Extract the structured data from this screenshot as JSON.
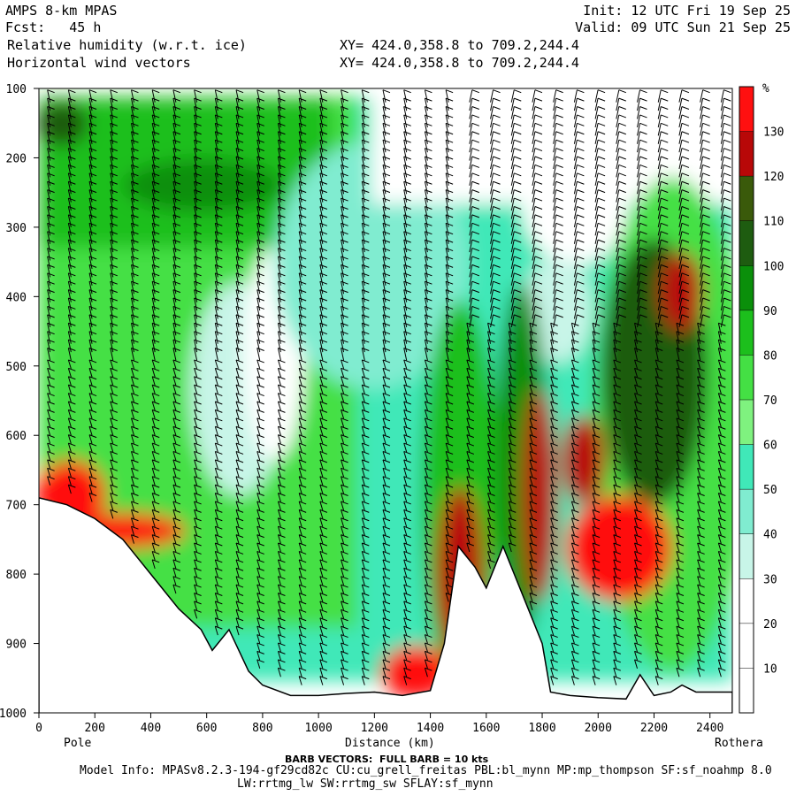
{
  "header": {
    "left_line1": "AMPS 8-km MPAS",
    "left_line2": "Fcst:   45 h",
    "left_line3": "Relative humidity (w.r.t. ice)",
    "left_line4": "Horizontal wind vectors",
    "right_line1": "Init: 12 UTC Fri 19 Sep 25",
    "right_line2": "Valid: 09 UTC Sun 21 Sep 25",
    "xy_line1": "XY= 424.0,358.8 to 709.2,244.4",
    "xy_line2": "XY= 424.0,358.8 to 709.2,244.4"
  },
  "chart_data": {
    "type": "heatmap",
    "title": "Relative humidity (w.r.t. ice)",
    "xlabel": "Distance (km)",
    "x_endpoints": [
      "Pole",
      "Rothera"
    ],
    "xlim": [
      0,
      2480
    ],
    "x_ticks": [
      0,
      200,
      400,
      600,
      800,
      1000,
      1200,
      1400,
      1600,
      1800,
      2000,
      2200,
      2400
    ],
    "ylim": [
      1000,
      100
    ],
    "y_ticks": [
      100,
      200,
      300,
      400,
      500,
      600,
      700,
      800,
      900,
      1000
    ],
    "colorbar": {
      "unit": "%",
      "levels": [
        10,
        20,
        30,
        40,
        50,
        60,
        70,
        80,
        90,
        100,
        110,
        120,
        130
      ],
      "colors": [
        "#ffffff",
        "#ffffff",
        "#ffffff",
        "#c8f5e8",
        "#80ecd0",
        "#40e8b8",
        "#7ff27f",
        "#44e044",
        "#1cbf1c",
        "#0a8f0a",
        "#1e5c10",
        "#3a5a0a",
        "#b80808",
        "#ff1010"
      ]
    },
    "terrain_pressure": [
      [
        0,
        690
      ],
      [
        100,
        700
      ],
      [
        200,
        720
      ],
      [
        300,
        750
      ],
      [
        400,
        800
      ],
      [
        500,
        850
      ],
      [
        580,
        880
      ],
      [
        620,
        910
      ],
      [
        680,
        880
      ],
      [
        750,
        940
      ],
      [
        800,
        960
      ],
      [
        900,
        975
      ],
      [
        1000,
        975
      ],
      [
        1100,
        972
      ],
      [
        1200,
        970
      ],
      [
        1300,
        975
      ],
      [
        1400,
        968
      ],
      [
        1450,
        900
      ],
      [
        1500,
        760
      ],
      [
        1560,
        790
      ],
      [
        1600,
        820
      ],
      [
        1660,
        760
      ],
      [
        1700,
        800
      ],
      [
        1760,
        860
      ],
      [
        1800,
        900
      ],
      [
        1830,
        970
      ],
      [
        1900,
        975
      ],
      [
        2000,
        978
      ],
      [
        2100,
        980
      ],
      [
        2150,
        945
      ],
      [
        2200,
        975
      ],
      [
        2260,
        970
      ],
      [
        2300,
        960
      ],
      [
        2350,
        970
      ],
      [
        2480,
        970
      ]
    ],
    "barb_note": "BARB VECTORS:  FULL BARB = 10 kts"
  },
  "footer": {
    "barb_label": "BARB VECTORS:  FULL BARB = 10 kts",
    "model_info": "Model Info: MPASv8.2.3-194-gf29cd82c CU:cu_grell_freitas PBL:bl_mynn MP:mp_thompson SF:sf_noahmp 8.0",
    "model_info2": "LW:rrtmg_lw SW:rrtmg_sw SFLAY:sf_mynn"
  }
}
